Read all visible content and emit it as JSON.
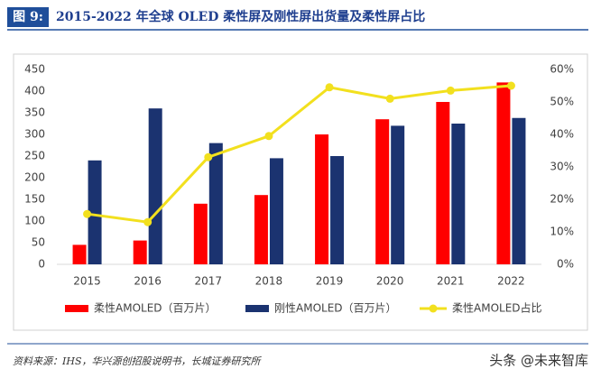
{
  "header": {
    "figure_label": "图 9:",
    "title": "2015-2022 年全球 OLED 柔性屏及刚性屏出货量及柔性屏占比"
  },
  "chart_data": {
    "type": "bar",
    "categories": [
      "2015",
      "2016",
      "2017",
      "2018",
      "2019",
      "2020",
      "2021",
      "2022"
    ],
    "series": [
      {
        "name": "柔性AMOLED（百万片）",
        "type": "bar",
        "color": "#ff0000",
        "values": [
          45,
          55,
          140,
          160,
          300,
          335,
          375,
          420
        ]
      },
      {
        "name": "刚性AMOLED（百万片）",
        "type": "bar",
        "color": "#1b3370",
        "values": [
          240,
          360,
          280,
          245,
          250,
          320,
          325,
          338
        ]
      },
      {
        "name": "柔性AMOLED占比",
        "type": "line",
        "axis": "y2",
        "color": "#f2e01e",
        "values": [
          15.5,
          13,
          33,
          39.5,
          54.5,
          51,
          53.5,
          55
        ]
      }
    ],
    "ylim": [
      0,
      450
    ],
    "yticks": [
      0,
      50,
      100,
      150,
      200,
      250,
      300,
      350,
      400,
      450
    ],
    "y2lim": [
      0,
      60
    ],
    "y2ticks": [
      {
        "value": 0,
        "label": "0%"
      },
      {
        "value": 10,
        "label": "10%"
      },
      {
        "value": 20,
        "label": "20%"
      },
      {
        "value": 30,
        "label": "30%"
      },
      {
        "value": 40,
        "label": "40%"
      },
      {
        "value": 50,
        "label": "50%"
      },
      {
        "value": 60,
        "label": "60%"
      }
    ],
    "grid": false,
    "legend": "bottom"
  },
  "source": "资料来源：IHS，华兴源创招股说明书，长城证券研究所",
  "watermark": "头条 @未来智库"
}
